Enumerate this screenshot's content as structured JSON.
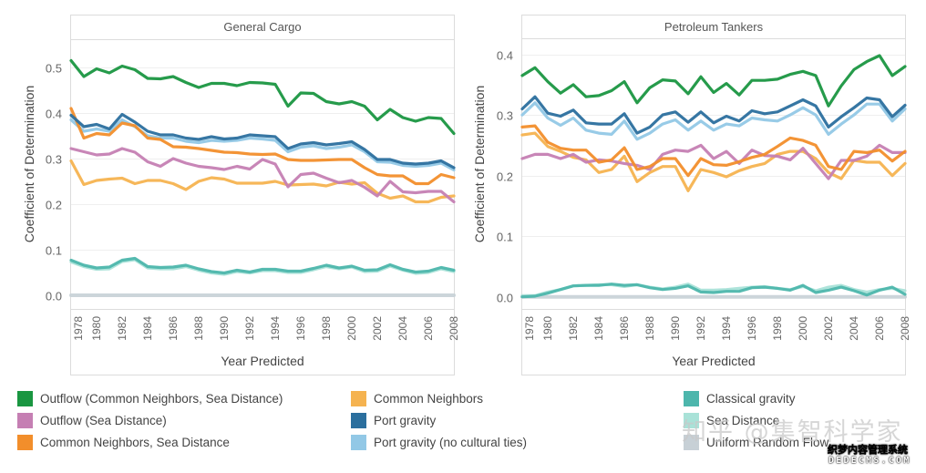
{
  "chart_data": {
    "type": "line",
    "xlabel": "Year Predicted",
    "ylabel": "Coefficient of Determination",
    "x": [
      1978,
      1979,
      1980,
      1981,
      1982,
      1983,
      1984,
      1985,
      1986,
      1987,
      1988,
      1989,
      1990,
      1991,
      1992,
      1993,
      1994,
      1995,
      1996,
      1997,
      1998,
      1999,
      2000,
      2001,
      2002,
      2003,
      2004,
      2005,
      2006,
      2007,
      2008
    ],
    "x_tick_labels": [
      "1978",
      "1980",
      "1982",
      "1984",
      "1986",
      "1988",
      "1990",
      "1992",
      "1994",
      "1996",
      "1998",
      "2000",
      "2002",
      "2004",
      "2006",
      "2008"
    ],
    "legend": [
      {
        "name": "Outflow (Common Neighbors, Sea Distance)",
        "color": "#1a9641"
      },
      {
        "name": "Outflow (Sea Distance)",
        "color": "#c57fb3"
      },
      {
        "name": "Common Neighbors, Sea Distance",
        "color": "#f28e2b"
      },
      {
        "name": "Common Neighbors",
        "color": "#f5b350"
      },
      {
        "name": "Port gravity",
        "color": "#2b6f9e"
      },
      {
        "name": "Port gravity (no cultural ties)",
        "color": "#92c8e6"
      },
      {
        "name": "Classical gravity",
        "color": "#4db6ac"
      },
      {
        "name": "Sea Distance",
        "color": "#a9e2d8"
      },
      {
        "name": "Uniform Random Flow",
        "color": "#c7d0d6"
      }
    ],
    "legend_placement": "bottom",
    "grid": true,
    "panels": [
      {
        "title": "General Cargo",
        "ylim": [
          -0.03,
          0.56
        ],
        "yticks": [
          "0.0",
          "0.1",
          "0.2",
          "0.3",
          "0.4",
          "0.5"
        ],
        "series": [
          {
            "name": "Port gravity (no cultural ties)",
            "values": [
              0.385,
              0.36,
              0.365,
              0.36,
              0.385,
              0.37,
              0.35,
              0.345,
              0.345,
              0.338,
              0.335,
              0.34,
              0.338,
              0.34,
              0.345,
              0.343,
              0.34,
              0.315,
              0.325,
              0.328,
              0.322,
              0.325,
              0.33,
              0.315,
              0.293,
              0.292,
              0.285,
              0.283,
              0.285,
              0.29,
              0.275
            ]
          },
          {
            "name": "Sea Distance",
            "values": [
              0.073,
              0.063,
              0.057,
              0.058,
              0.074,
              0.078,
              0.06,
              0.058,
              0.058,
              0.063,
              0.055,
              0.049,
              0.046,
              0.052,
              0.049,
              0.054,
              0.054,
              0.05,
              0.05,
              0.056,
              0.063,
              0.058,
              0.062,
              0.052,
              0.053,
              0.064,
              0.055,
              0.048,
              0.05,
              0.058,
              0.052
            ]
          },
          {
            "name": "Uniform Random Flow",
            "values": [
              0,
              0,
              0,
              0,
              0,
              0,
              0,
              0,
              0,
              0,
              0,
              0,
              0,
              0,
              0,
              0,
              0,
              0,
              0,
              0,
              0,
              0,
              0,
              0,
              0,
              0,
              0,
              0,
              0,
              0,
              0
            ]
          },
          {
            "name": "Common Neighbors",
            "values": [
              0.295,
              0.243,
              0.252,
              0.255,
              0.257,
              0.245,
              0.252,
              0.252,
              0.245,
              0.232,
              0.25,
              0.258,
              0.255,
              0.246,
              0.246,
              0.246,
              0.25,
              0.242,
              0.243,
              0.244,
              0.24,
              0.248,
              0.244,
              0.247,
              0.224,
              0.213,
              0.218,
              0.205,
              0.205,
              0.215,
              0.218
            ]
          },
          {
            "name": "Outflow (Sea Distance)",
            "values": [
              0.322,
              0.315,
              0.308,
              0.31,
              0.322,
              0.314,
              0.293,
              0.283,
              0.3,
              0.29,
              0.283,
              0.28,
              0.276,
              0.283,
              0.277,
              0.298,
              0.288,
              0.238,
              0.265,
              0.268,
              0.257,
              0.247,
              0.252,
              0.237,
              0.218,
              0.25,
              0.227,
              0.225,
              0.228,
              0.228,
              0.205
            ]
          },
          {
            "name": "Common Neighbors, Sea Distance",
            "values": [
              0.41,
              0.345,
              0.355,
              0.352,
              0.378,
              0.372,
              0.345,
              0.342,
              0.326,
              0.325,
              0.322,
              0.318,
              0.314,
              0.313,
              0.31,
              0.309,
              0.31,
              0.298,
              0.296,
              0.296,
              0.297,
              0.298,
              0.298,
              0.28,
              0.265,
              0.262,
              0.262,
              0.245,
              0.245,
              0.265,
              0.258
            ]
          },
          {
            "name": "Port gravity",
            "values": [
              0.395,
              0.37,
              0.375,
              0.365,
              0.397,
              0.38,
              0.36,
              0.352,
              0.352,
              0.345,
              0.342,
              0.348,
              0.343,
              0.345,
              0.352,
              0.35,
              0.348,
              0.322,
              0.332,
              0.335,
              0.33,
              0.333,
              0.337,
              0.32,
              0.298,
              0.298,
              0.29,
              0.288,
              0.29,
              0.295,
              0.28
            ]
          },
          {
            "name": "Classical gravity",
            "values": [
              0.077,
              0.066,
              0.06,
              0.062,
              0.077,
              0.081,
              0.063,
              0.061,
              0.062,
              0.066,
              0.058,
              0.052,
              0.049,
              0.055,
              0.051,
              0.057,
              0.057,
              0.053,
              0.053,
              0.059,
              0.066,
              0.06,
              0.064,
              0.055,
              0.056,
              0.067,
              0.057,
              0.051,
              0.053,
              0.061,
              0.055
            ]
          },
          {
            "name": "Outflow (Common Neighbors, Sea Distance)",
            "values": [
              0.515,
              0.48,
              0.497,
              0.488,
              0.503,
              0.495,
              0.476,
              0.475,
              0.48,
              0.467,
              0.456,
              0.465,
              0.465,
              0.46,
              0.467,
              0.466,
              0.463,
              0.415,
              0.444,
              0.443,
              0.425,
              0.42,
              0.425,
              0.415,
              0.385,
              0.408,
              0.39,
              0.382,
              0.39,
              0.388,
              0.355
            ]
          }
        ]
      },
      {
        "title": "Petroleum Tankers",
        "ylim": [
          -0.02,
          0.425
        ],
        "yticks": [
          "0.0",
          "0.1",
          "0.2",
          "0.3",
          "0.4"
        ],
        "series": [
          {
            "name": "Port gravity (no cultural ties)",
            "values": [
              0.3,
              0.32,
              0.295,
              0.283,
              0.295,
              0.275,
              0.27,
              0.268,
              0.29,
              0.26,
              0.27,
              0.285,
              0.292,
              0.275,
              0.29,
              0.275,
              0.285,
              0.282,
              0.295,
              0.292,
              0.29,
              0.3,
              0.312,
              0.3,
              0.268,
              0.285,
              0.3,
              0.318,
              0.318,
              0.29,
              0.31
            ]
          },
          {
            "name": "Sea Distance",
            "values": [
              0.002,
              0.002,
              0.008,
              0.012,
              0.018,
              0.019,
              0.02,
              0.02,
              0.017,
              0.02,
              0.016,
              0.013,
              0.016,
              0.021,
              0.011,
              0.011,
              0.012,
              0.014,
              0.016,
              0.017,
              0.014,
              0.012,
              0.017,
              0.01,
              0.016,
              0.019,
              0.012,
              0.008,
              0.012,
              0.014,
              0.01
            ]
          },
          {
            "name": "Uniform Random Flow",
            "values": [
              0,
              0,
              0,
              0,
              0,
              0,
              0,
              0,
              0,
              0,
              0,
              0,
              0,
              0,
              0,
              0,
              0,
              0,
              0,
              0,
              0,
              0,
              0,
              0,
              0,
              0,
              0,
              0,
              0,
              0,
              0
            ]
          },
          {
            "name": "Common Neighbors",
            "values": [
              0.267,
              0.27,
              0.248,
              0.24,
              0.23,
              0.226,
              0.205,
              0.21,
              0.232,
              0.19,
              0.205,
              0.215,
              0.215,
              0.175,
              0.21,
              0.205,
              0.198,
              0.208,
              0.215,
              0.22,
              0.235,
              0.24,
              0.24,
              0.228,
              0.205,
              0.195,
              0.225,
              0.222,
              0.222,
              0.2,
              0.22
            ]
          },
          {
            "name": "Outflow (Sea Distance)",
            "values": [
              0.228,
              0.235,
              0.235,
              0.228,
              0.235,
              0.222,
              0.226,
              0.224,
              0.22,
              0.217,
              0.21,
              0.235,
              0.242,
              0.24,
              0.25,
              0.228,
              0.24,
              0.22,
              0.242,
              0.233,
              0.232,
              0.226,
              0.245,
              0.22,
              0.195,
              0.225,
              0.225,
              0.232,
              0.25,
              0.238,
              0.238
            ]
          },
          {
            "name": "Common Neighbors, Sea Distance",
            "values": [
              0.28,
              0.282,
              0.255,
              0.245,
              0.242,
              0.242,
              0.222,
              0.226,
              0.246,
              0.21,
              0.215,
              0.228,
              0.228,
              0.2,
              0.228,
              0.218,
              0.217,
              0.223,
              0.23,
              0.235,
              0.248,
              0.262,
              0.258,
              0.25,
              0.215,
              0.21,
              0.24,
              0.238,
              0.242,
              0.224,
              0.24
            ]
          },
          {
            "name": "Port gravity",
            "values": [
              0.31,
              0.33,
              0.303,
              0.298,
              0.308,
              0.287,
              0.285,
              0.285,
              0.302,
              0.27,
              0.28,
              0.3,
              0.305,
              0.288,
              0.305,
              0.287,
              0.298,
              0.29,
              0.307,
              0.302,
              0.305,
              0.315,
              0.325,
              0.315,
              0.28,
              0.297,
              0.312,
              0.328,
              0.325,
              0.297,
              0.316
            ]
          },
          {
            "name": "Classical gravity",
            "values": [
              0,
              0.001,
              0.006,
              0.012,
              0.018,
              0.019,
              0.019,
              0.021,
              0.019,
              0.02,
              0.015,
              0.012,
              0.014,
              0.018,
              0.008,
              0.007,
              0.009,
              0.009,
              0.015,
              0.016,
              0.014,
              0.011,
              0.019,
              0.007,
              0.011,
              0.016,
              0.01,
              0.003,
              0.011,
              0.016,
              0.004
            ]
          },
          {
            "name": "Outflow (Common Neighbors, Sea Distance)",
            "values": [
              0.365,
              0.378,
              0.355,
              0.336,
              0.35,
              0.33,
              0.332,
              0.34,
              0.355,
              0.32,
              0.345,
              0.358,
              0.356,
              0.335,
              0.363,
              0.337,
              0.352,
              0.333,
              0.357,
              0.357,
              0.359,
              0.367,
              0.372,
              0.365,
              0.315,
              0.348,
              0.375,
              0.388,
              0.398,
              0.365,
              0.38
            ]
          }
        ]
      }
    ]
  },
  "watermark": {
    "zhihu": "知乎 @集智科学家",
    "dedecms_cn": "织梦内容管理系统",
    "dedecms_en": "DEDECMS.COM"
  }
}
